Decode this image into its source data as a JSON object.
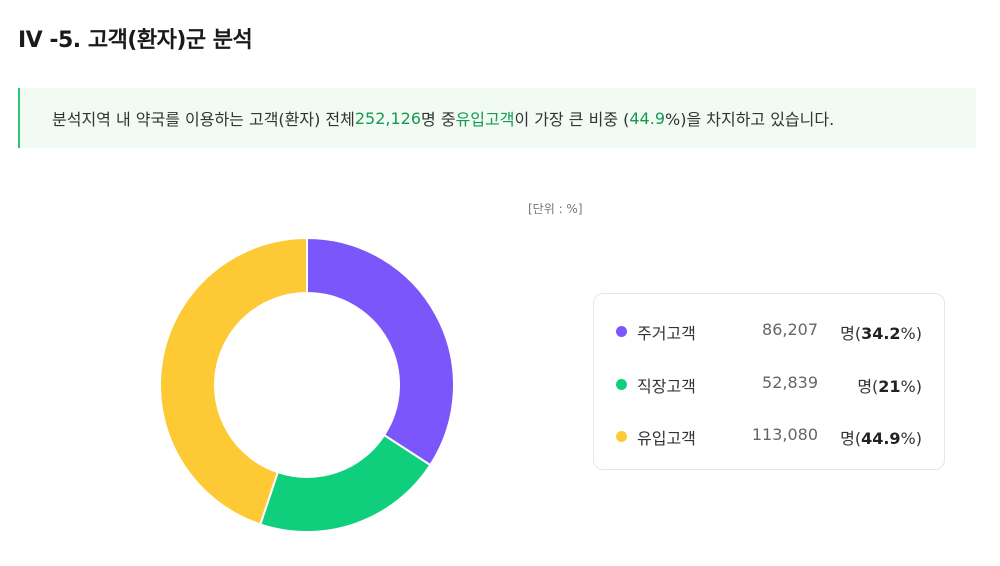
{
  "header": {
    "title": "IV -5. 고객(환자)군 분석"
  },
  "callout": {
    "part1": "분석지역 내 약국를 이용하는 고객(환자) 전체 ",
    "total": "252,126",
    "part2": "명 중 ",
    "highlight_group": "유입고객",
    "part3": "이 가장 큰 비중 (",
    "highlight_pct": "44.9",
    "part4": "%)을 차지하고 있습니다."
  },
  "unit_label": "[단위 : %]",
  "colors": {
    "highlight": "#159a4f",
    "resident": "#7b57fb",
    "worker": "#0fcf7d",
    "inflow": "#fdc934"
  },
  "count_unit": "명",
  "chart_data": {
    "type": "pie",
    "donut": true,
    "categories": [
      "주거고객",
      "직장고객",
      "유입고객"
    ],
    "values": [
      34.2,
      21,
      44.9
    ],
    "counts": [
      "86,207",
      "52,839",
      "113,080"
    ],
    "value_labels": [
      "34.2",
      "21",
      "44.9"
    ],
    "colors": [
      "#7b57fb",
      "#0fcf7d",
      "#fdc934"
    ],
    "start_angle_deg": 0,
    "legend_position": "right"
  }
}
